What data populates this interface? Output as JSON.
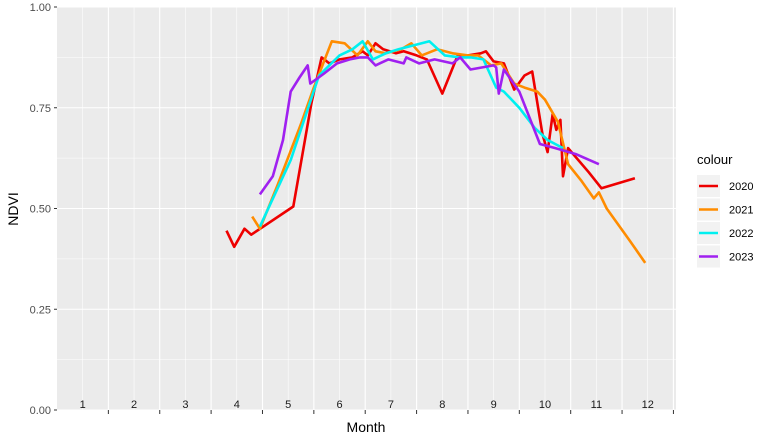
{
  "chart_data": {
    "type": "line",
    "title": "",
    "xlabel": "Month",
    "ylabel": "NDVI",
    "xlim": [
      0,
      12.05
    ],
    "ylim": [
      0,
      1
    ],
    "grid": true,
    "legend_title": "colour",
    "legend_position": "right",
    "y_ticks": [
      "0.00",
      "0.25",
      "0.50",
      "0.75",
      "1.00"
    ],
    "month_labels": [
      "1",
      "2",
      "3",
      "4",
      "5",
      "6",
      "7",
      "8",
      "9",
      "10",
      "11",
      "12"
    ],
    "series": [
      {
        "name": "2020",
        "color": "#ee0000",
        "points": [
          [
            3.3,
            0.445
          ],
          [
            3.45,
            0.405
          ],
          [
            3.65,
            0.45
          ],
          [
            3.78,
            0.435
          ],
          [
            4.6,
            0.505
          ],
          [
            4.95,
            0.76
          ],
          [
            5.15,
            0.875
          ],
          [
            5.3,
            0.86
          ],
          [
            5.5,
            0.87
          ],
          [
            5.75,
            0.875
          ],
          [
            5.95,
            0.89
          ],
          [
            6.05,
            0.88
          ],
          [
            6.2,
            0.91
          ],
          [
            6.35,
            0.895
          ],
          [
            6.6,
            0.885
          ],
          [
            6.75,
            0.89
          ],
          [
            7.0,
            0.88
          ],
          [
            7.2,
            0.87
          ],
          [
            7.5,
            0.785
          ],
          [
            7.8,
            0.88
          ],
          [
            8.0,
            0.88
          ],
          [
            8.25,
            0.885
          ],
          [
            8.35,
            0.89
          ],
          [
            8.5,
            0.865
          ],
          [
            8.7,
            0.86
          ],
          [
            8.9,
            0.795
          ],
          [
            9.1,
            0.83
          ],
          [
            9.25,
            0.84
          ],
          [
            9.45,
            0.685
          ],
          [
            9.55,
            0.64
          ],
          [
            9.65,
            0.735
          ],
          [
            9.72,
            0.695
          ],
          [
            9.8,
            0.72
          ],
          [
            9.85,
            0.58
          ],
          [
            9.95,
            0.65
          ],
          [
            10.35,
            0.59
          ],
          [
            10.6,
            0.55
          ],
          [
            11.25,
            0.575
          ]
        ]
      },
      {
        "name": "2021",
        "color": "#ff8c00",
        "points": [
          [
            3.8,
            0.48
          ],
          [
            3.95,
            0.45
          ],
          [
            4.3,
            0.56
          ],
          [
            4.75,
            0.71
          ],
          [
            5.0,
            0.8
          ],
          [
            5.35,
            0.915
          ],
          [
            5.6,
            0.91
          ],
          [
            5.85,
            0.88
          ],
          [
            6.05,
            0.915
          ],
          [
            6.2,
            0.89
          ],
          [
            6.4,
            0.885
          ],
          [
            6.7,
            0.895
          ],
          [
            6.9,
            0.91
          ],
          [
            7.1,
            0.88
          ],
          [
            7.4,
            0.895
          ],
          [
            7.7,
            0.885
          ],
          [
            8.0,
            0.88
          ],
          [
            8.2,
            0.88
          ],
          [
            8.45,
            0.855
          ],
          [
            8.65,
            0.86
          ],
          [
            8.9,
            0.81
          ],
          [
            9.1,
            0.8
          ],
          [
            9.35,
            0.79
          ],
          [
            9.5,
            0.77
          ],
          [
            9.75,
            0.715
          ],
          [
            9.95,
            0.61
          ],
          [
            10.2,
            0.57
          ],
          [
            10.45,
            0.525
          ],
          [
            10.55,
            0.54
          ],
          [
            10.7,
            0.5
          ],
          [
            11.15,
            0.42
          ],
          [
            11.45,
            0.365
          ]
        ]
      },
      {
        "name": "2022",
        "color": "#00f0f0",
        "points": [
          [
            3.95,
            0.455
          ],
          [
            4.55,
            0.62
          ],
          [
            5.1,
            0.83
          ],
          [
            5.5,
            0.88
          ],
          [
            5.75,
            0.895
          ],
          [
            5.95,
            0.915
          ],
          [
            6.15,
            0.87
          ],
          [
            6.4,
            0.885
          ],
          [
            6.65,
            0.895
          ],
          [
            6.95,
            0.905
          ],
          [
            7.25,
            0.915
          ],
          [
            7.55,
            0.88
          ],
          [
            7.85,
            0.875
          ],
          [
            8.05,
            0.875
          ],
          [
            8.3,
            0.87
          ],
          [
            8.55,
            0.8
          ],
          [
            8.7,
            0.79
          ],
          [
            9.0,
            0.75
          ],
          [
            9.3,
            0.7
          ],
          [
            9.55,
            0.67
          ],
          [
            9.85,
            0.65
          ]
        ]
      },
      {
        "name": "2023",
        "color": "#a020f0",
        "points": [
          [
            3.95,
            0.535
          ],
          [
            4.2,
            0.58
          ],
          [
            4.4,
            0.67
          ],
          [
            4.55,
            0.79
          ],
          [
            4.72,
            0.825
          ],
          [
            4.88,
            0.855
          ],
          [
            4.93,
            0.81
          ],
          [
            5.2,
            0.835
          ],
          [
            5.45,
            0.86
          ],
          [
            5.7,
            0.87
          ],
          [
            5.9,
            0.875
          ],
          [
            6.05,
            0.875
          ],
          [
            6.2,
            0.855
          ],
          [
            6.45,
            0.87
          ],
          [
            6.75,
            0.86
          ],
          [
            6.8,
            0.875
          ],
          [
            7.05,
            0.86
          ],
          [
            7.35,
            0.87
          ],
          [
            7.7,
            0.86
          ],
          [
            7.85,
            0.875
          ],
          [
            8.05,
            0.845
          ],
          [
            8.5,
            0.855
          ],
          [
            8.55,
            0.85
          ],
          [
            8.6,
            0.785
          ],
          [
            8.7,
            0.845
          ],
          [
            9.0,
            0.79
          ],
          [
            9.4,
            0.66
          ],
          [
            9.7,
            0.65
          ],
          [
            10.1,
            0.635
          ],
          [
            10.55,
            0.61
          ]
        ]
      }
    ]
  }
}
